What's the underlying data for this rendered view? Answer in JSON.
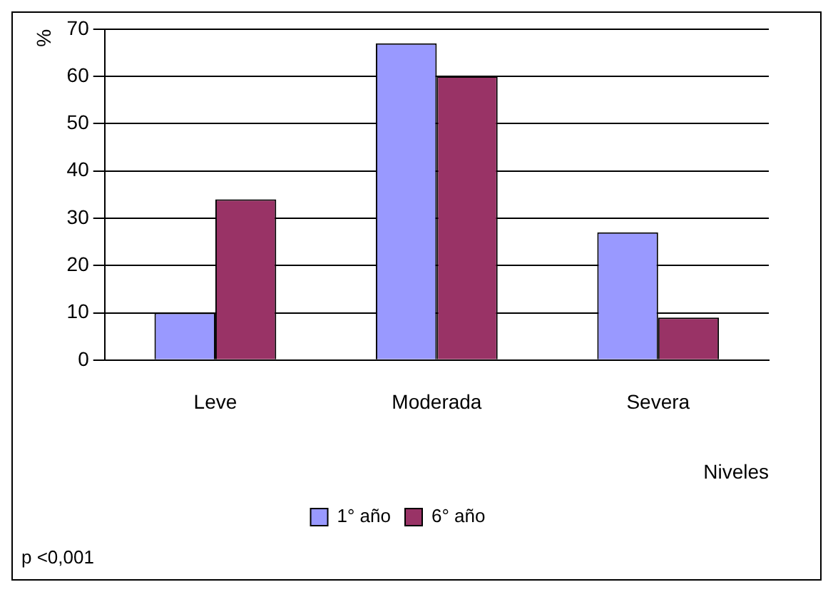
{
  "chart_data": {
    "type": "bar",
    "xlabel": "Niveles",
    "ylabel": "%",
    "categories": [
      "Leve",
      "Moderada",
      "Severa"
    ],
    "series": [
      {
        "name": "1° año",
        "color": "#9999ff",
        "values": [
          10,
          67,
          27
        ]
      },
      {
        "name": "6° año",
        "color": "#993366",
        "values": [
          34,
          60,
          9
        ]
      }
    ],
    "ylim": [
      0,
      70
    ],
    "yticks": [
      0,
      10,
      20,
      30,
      40,
      50,
      60,
      70
    ],
    "grid": "y",
    "legend": "bottom",
    "annotations": [
      "p <0,001"
    ]
  }
}
